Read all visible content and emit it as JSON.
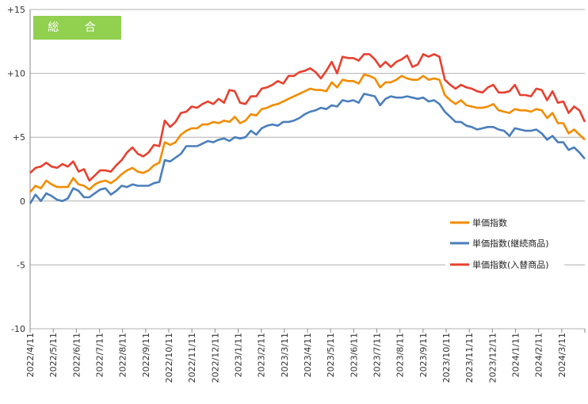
{
  "badge": {
    "label": "総 合",
    "color": "#92d050"
  },
  "chart_data": {
    "type": "line",
    "ylim": [
      -10,
      15
    ],
    "yticks": [
      {
        "value": 15,
        "label": "+15"
      },
      {
        "value": 10,
        "label": "+10"
      },
      {
        "value": 5,
        "label": "+5"
      },
      {
        "value": 0,
        "label": "0"
      },
      {
        "value": -5,
        "label": "-5"
      },
      {
        "value": -10,
        "label": "-10"
      }
    ],
    "xtick_labels": [
      "2022/4/11",
      "2022/5/11",
      "2022/6/11",
      "2022/7/11",
      "2022/8/11",
      "2022/9/11",
      "2022/10/11",
      "2022/11/11",
      "2022/12/11",
      "2023/1/11",
      "2023/2/11",
      "2023/3/11",
      "2023/4/11",
      "2023/5/11",
      "2023/6/11",
      "2023/7/11",
      "2023/8/11",
      "2023/9/11",
      "2023/10/11",
      "2023/11/11",
      "2023/12/11",
      "2024/1/11",
      "2024/2/11",
      "2024/3/11"
    ],
    "grid": "horizontal",
    "legend_position": "right",
    "series": [
      {
        "name": "単価指数",
        "color": "#f28c00",
        "values": [
          0.7,
          1.2,
          1.0,
          1.6,
          1.3,
          1.1,
          1.1,
          1.1,
          1.8,
          1.3,
          1.2,
          0.9,
          1.3,
          1.5,
          1.6,
          1.4,
          1.7,
          2.1,
          2.4,
          2.6,
          2.3,
          2.2,
          2.4,
          2.8,
          3.0,
          4.6,
          4.4,
          4.6,
          5.2,
          5.5,
          5.7,
          5.7,
          6.0,
          6.0,
          6.2,
          6.1,
          6.3,
          6.2,
          6.6,
          6.1,
          6.3,
          6.8,
          6.7,
          7.2,
          7.3,
          7.5,
          7.6,
          7.8,
          8.0,
          8.2,
          8.4,
          8.6,
          8.8,
          8.7,
          8.7,
          8.6,
          9.3,
          8.9,
          9.5,
          9.4,
          9.4,
          9.2,
          9.9,
          9.8,
          9.6,
          8.9,
          9.3,
          9.3,
          9.5,
          9.8,
          9.6,
          9.5,
          9.5,
          9.8,
          9.5,
          9.6,
          9.5,
          8.3,
          7.9,
          7.6,
          7.9,
          7.5,
          7.4,
          7.3,
          7.3,
          7.4,
          7.6,
          7.1,
          7.0,
          6.9,
          7.2,
          7.1,
          7.1,
          7.0,
          7.2,
          7.1,
          6.5,
          6.9,
          6.1,
          6.1,
          5.3,
          5.6,
          5.2,
          4.8
        ]
      },
      {
        "name": "単価指数(継続商品)",
        "color": "#4a7ebb",
        "values": [
          -0.2,
          0.5,
          0.0,
          0.6,
          0.4,
          0.1,
          0.0,
          0.2,
          1.0,
          0.8,
          0.3,
          0.3,
          0.6,
          0.9,
          1.0,
          0.5,
          0.8,
          1.2,
          1.1,
          1.3,
          1.2,
          1.2,
          1.2,
          1.4,
          1.5,
          3.2,
          3.1,
          3.4,
          3.7,
          4.3,
          4.3,
          4.3,
          4.5,
          4.7,
          4.6,
          4.8,
          4.9,
          4.7,
          5.0,
          4.9,
          5.0,
          5.5,
          5.2,
          5.7,
          5.9,
          6.0,
          5.9,
          6.2,
          6.2,
          6.3,
          6.5,
          6.8,
          7.0,
          7.1,
          7.3,
          7.2,
          7.5,
          7.4,
          7.9,
          7.8,
          7.9,
          7.7,
          8.4,
          8.3,
          8.2,
          7.5,
          8.0,
          8.2,
          8.1,
          8.1,
          8.2,
          8.1,
          8.0,
          8.1,
          7.8,
          7.9,
          7.6,
          7.0,
          6.6,
          6.2,
          6.2,
          5.9,
          5.8,
          5.6,
          5.7,
          5.8,
          5.8,
          5.6,
          5.5,
          5.1,
          5.7,
          5.6,
          5.5,
          5.5,
          5.6,
          5.3,
          4.8,
          5.1,
          4.6,
          4.6,
          4.0,
          4.2,
          3.8,
          3.3
        ]
      },
      {
        "name": "単価指数(入替商品)",
        "color": "#e8402f",
        "values": [
          2.2,
          2.6,
          2.7,
          3.0,
          2.7,
          2.6,
          2.9,
          2.7,
          3.1,
          2.3,
          2.5,
          1.6,
          2.0,
          2.4,
          2.4,
          2.3,
          2.8,
          3.2,
          3.8,
          4.2,
          3.7,
          3.5,
          3.8,
          4.4,
          4.3,
          6.3,
          5.8,
          6.2,
          6.9,
          7.0,
          7.4,
          7.3,
          7.6,
          7.8,
          7.6,
          8.0,
          7.7,
          8.7,
          8.6,
          7.7,
          7.6,
          8.2,
          8.2,
          8.8,
          8.9,
          9.1,
          9.4,
          9.2,
          9.8,
          9.8,
          10.1,
          10.2,
          10.4,
          10.1,
          9.6,
          10.2,
          10.9,
          10.0,
          11.3,
          11.2,
          11.2,
          11.0,
          11.5,
          11.5,
          11.1,
          10.5,
          10.9,
          10.5,
          10.9,
          11.1,
          11.4,
          10.5,
          10.7,
          11.5,
          11.3,
          11.5,
          11.3,
          9.5,
          9.1,
          8.8,
          9.1,
          8.9,
          8.8,
          8.6,
          8.5,
          8.9,
          9.1,
          8.5,
          8.5,
          8.6,
          9.1,
          8.3,
          8.3,
          8.2,
          8.8,
          8.7,
          7.9,
          8.6,
          7.7,
          7.8,
          6.9,
          7.4,
          7.1,
          6.2
        ]
      }
    ]
  }
}
